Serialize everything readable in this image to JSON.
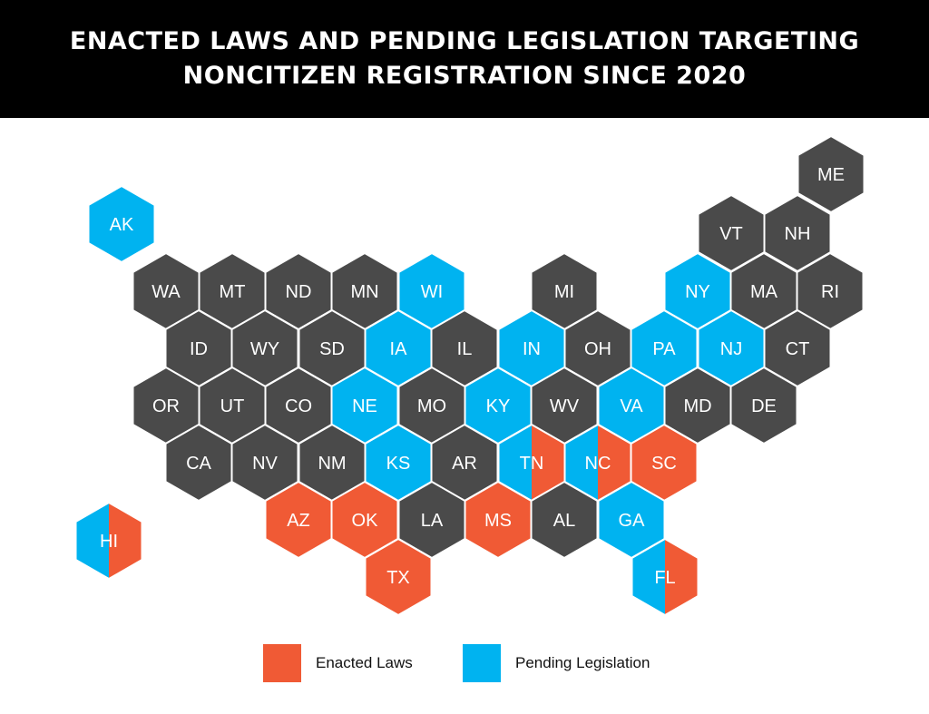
{
  "title": {
    "line1": "ENACTED LAWS AND PENDING LEGISLATION TARGETING",
    "line2": "NONCITIZEN REGISTRATION SINCE 2020"
  },
  "colors": {
    "none": "#4a4a4a",
    "enacted": "#f05a35",
    "pending": "#00b3f0",
    "background": "#ffffff",
    "header": "#000000"
  },
  "legend": {
    "enacted_label": "Enacted Laws",
    "pending_label": "Pending Legislation"
  },
  "states": [
    {
      "abbr": "ME",
      "status": "none"
    },
    {
      "abbr": "AK",
      "status": "pending"
    },
    {
      "abbr": "VT",
      "status": "none"
    },
    {
      "abbr": "NH",
      "status": "none"
    },
    {
      "abbr": "WA",
      "status": "none"
    },
    {
      "abbr": "MT",
      "status": "none"
    },
    {
      "abbr": "ND",
      "status": "none"
    },
    {
      "abbr": "MN",
      "status": "none"
    },
    {
      "abbr": "WI",
      "status": "pending"
    },
    {
      "abbr": "MI",
      "status": "none"
    },
    {
      "abbr": "NY",
      "status": "pending"
    },
    {
      "abbr": "MA",
      "status": "none"
    },
    {
      "abbr": "RI",
      "status": "none"
    },
    {
      "abbr": "ID",
      "status": "none"
    },
    {
      "abbr": "WY",
      "status": "none"
    },
    {
      "abbr": "SD",
      "status": "none"
    },
    {
      "abbr": "IA",
      "status": "pending"
    },
    {
      "abbr": "IL",
      "status": "none"
    },
    {
      "abbr": "IN",
      "status": "pending"
    },
    {
      "abbr": "OH",
      "status": "none"
    },
    {
      "abbr": "PA",
      "status": "pending"
    },
    {
      "abbr": "NJ",
      "status": "pending"
    },
    {
      "abbr": "CT",
      "status": "none"
    },
    {
      "abbr": "OR",
      "status": "none"
    },
    {
      "abbr": "UT",
      "status": "none"
    },
    {
      "abbr": "CO",
      "status": "none"
    },
    {
      "abbr": "NE",
      "status": "pending"
    },
    {
      "abbr": "MO",
      "status": "none"
    },
    {
      "abbr": "KY",
      "status": "pending"
    },
    {
      "abbr": "WV",
      "status": "none"
    },
    {
      "abbr": "VA",
      "status": "pending"
    },
    {
      "abbr": "MD",
      "status": "none"
    },
    {
      "abbr": "DE",
      "status": "none"
    },
    {
      "abbr": "CA",
      "status": "none"
    },
    {
      "abbr": "NV",
      "status": "none"
    },
    {
      "abbr": "NM",
      "status": "none"
    },
    {
      "abbr": "KS",
      "status": "pending"
    },
    {
      "abbr": "AR",
      "status": "none"
    },
    {
      "abbr": "TN",
      "status": "both"
    },
    {
      "abbr": "NC",
      "status": "both"
    },
    {
      "abbr": "SC",
      "status": "enacted"
    },
    {
      "abbr": "HI",
      "status": "both"
    },
    {
      "abbr": "AZ",
      "status": "enacted"
    },
    {
      "abbr": "OK",
      "status": "enacted"
    },
    {
      "abbr": "LA",
      "status": "none"
    },
    {
      "abbr": "MS",
      "status": "enacted"
    },
    {
      "abbr": "AL",
      "status": "none"
    },
    {
      "abbr": "GA",
      "status": "pending"
    },
    {
      "abbr": "TX",
      "status": "enacted"
    },
    {
      "abbr": "FL",
      "status": "both"
    }
  ]
}
